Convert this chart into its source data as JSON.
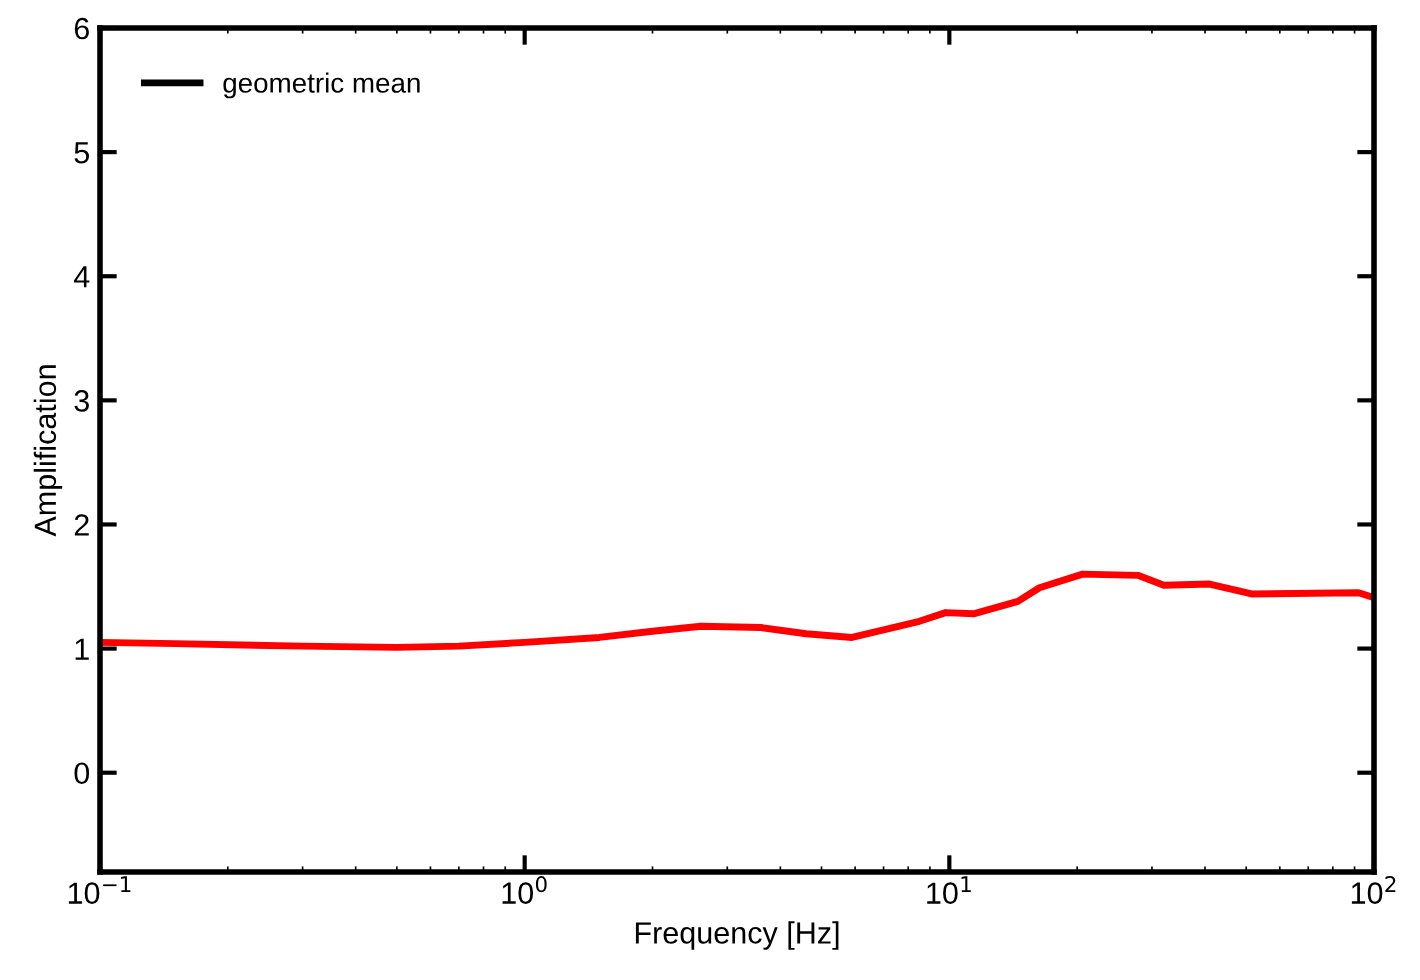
{
  "chart_data": {
    "type": "line",
    "xlabel": "Frequency [Hz]",
    "ylabel": "Amplification",
    "log": "x",
    "xlim": [
      0.1,
      100
    ],
    "xticks": [
      {
        "value": 0.1,
        "label": "10$^{−1}$"
      },
      {
        "value": 1,
        "label": "10$^{0}$"
      },
      {
        "value": 10,
        "label": "10$^{1}$"
      },
      {
        "value": 100,
        "label": "10$^{2}$"
      }
    ],
    "ylim": [
      -0.8,
      6
    ],
    "yticks": [
      0,
      1,
      2,
      3,
      4,
      5,
      6
    ],
    "grid": false,
    "legend": "top left",
    "line_style": "solid",
    "marker": "none",
    "series": [
      {
        "name": "geometric mean",
        "color": "#000000"
      },
      {
        "color": "#ff0000",
        "x": [
          0.1,
          0.15,
          0.3,
          0.5,
          0.7,
          1,
          1.5,
          2,
          2.6,
          3.6,
          4.6,
          5.9,
          8.5,
          9.8,
          11.4,
          14.5,
          16.3,
          20.6,
          27.8,
          32,
          41,
          51.5,
          92,
          100
        ],
        "values": [
          1.05,
          1.04,
          1.02,
          1.01,
          1.02,
          1.05,
          1.09,
          1.14,
          1.18,
          1.17,
          1.12,
          1.09,
          1.22,
          1.29,
          1.28,
          1.38,
          1.49,
          1.6,
          1.59,
          1.51,
          1.52,
          1.44,
          1.45,
          1.41
        ]
      }
    ]
  }
}
